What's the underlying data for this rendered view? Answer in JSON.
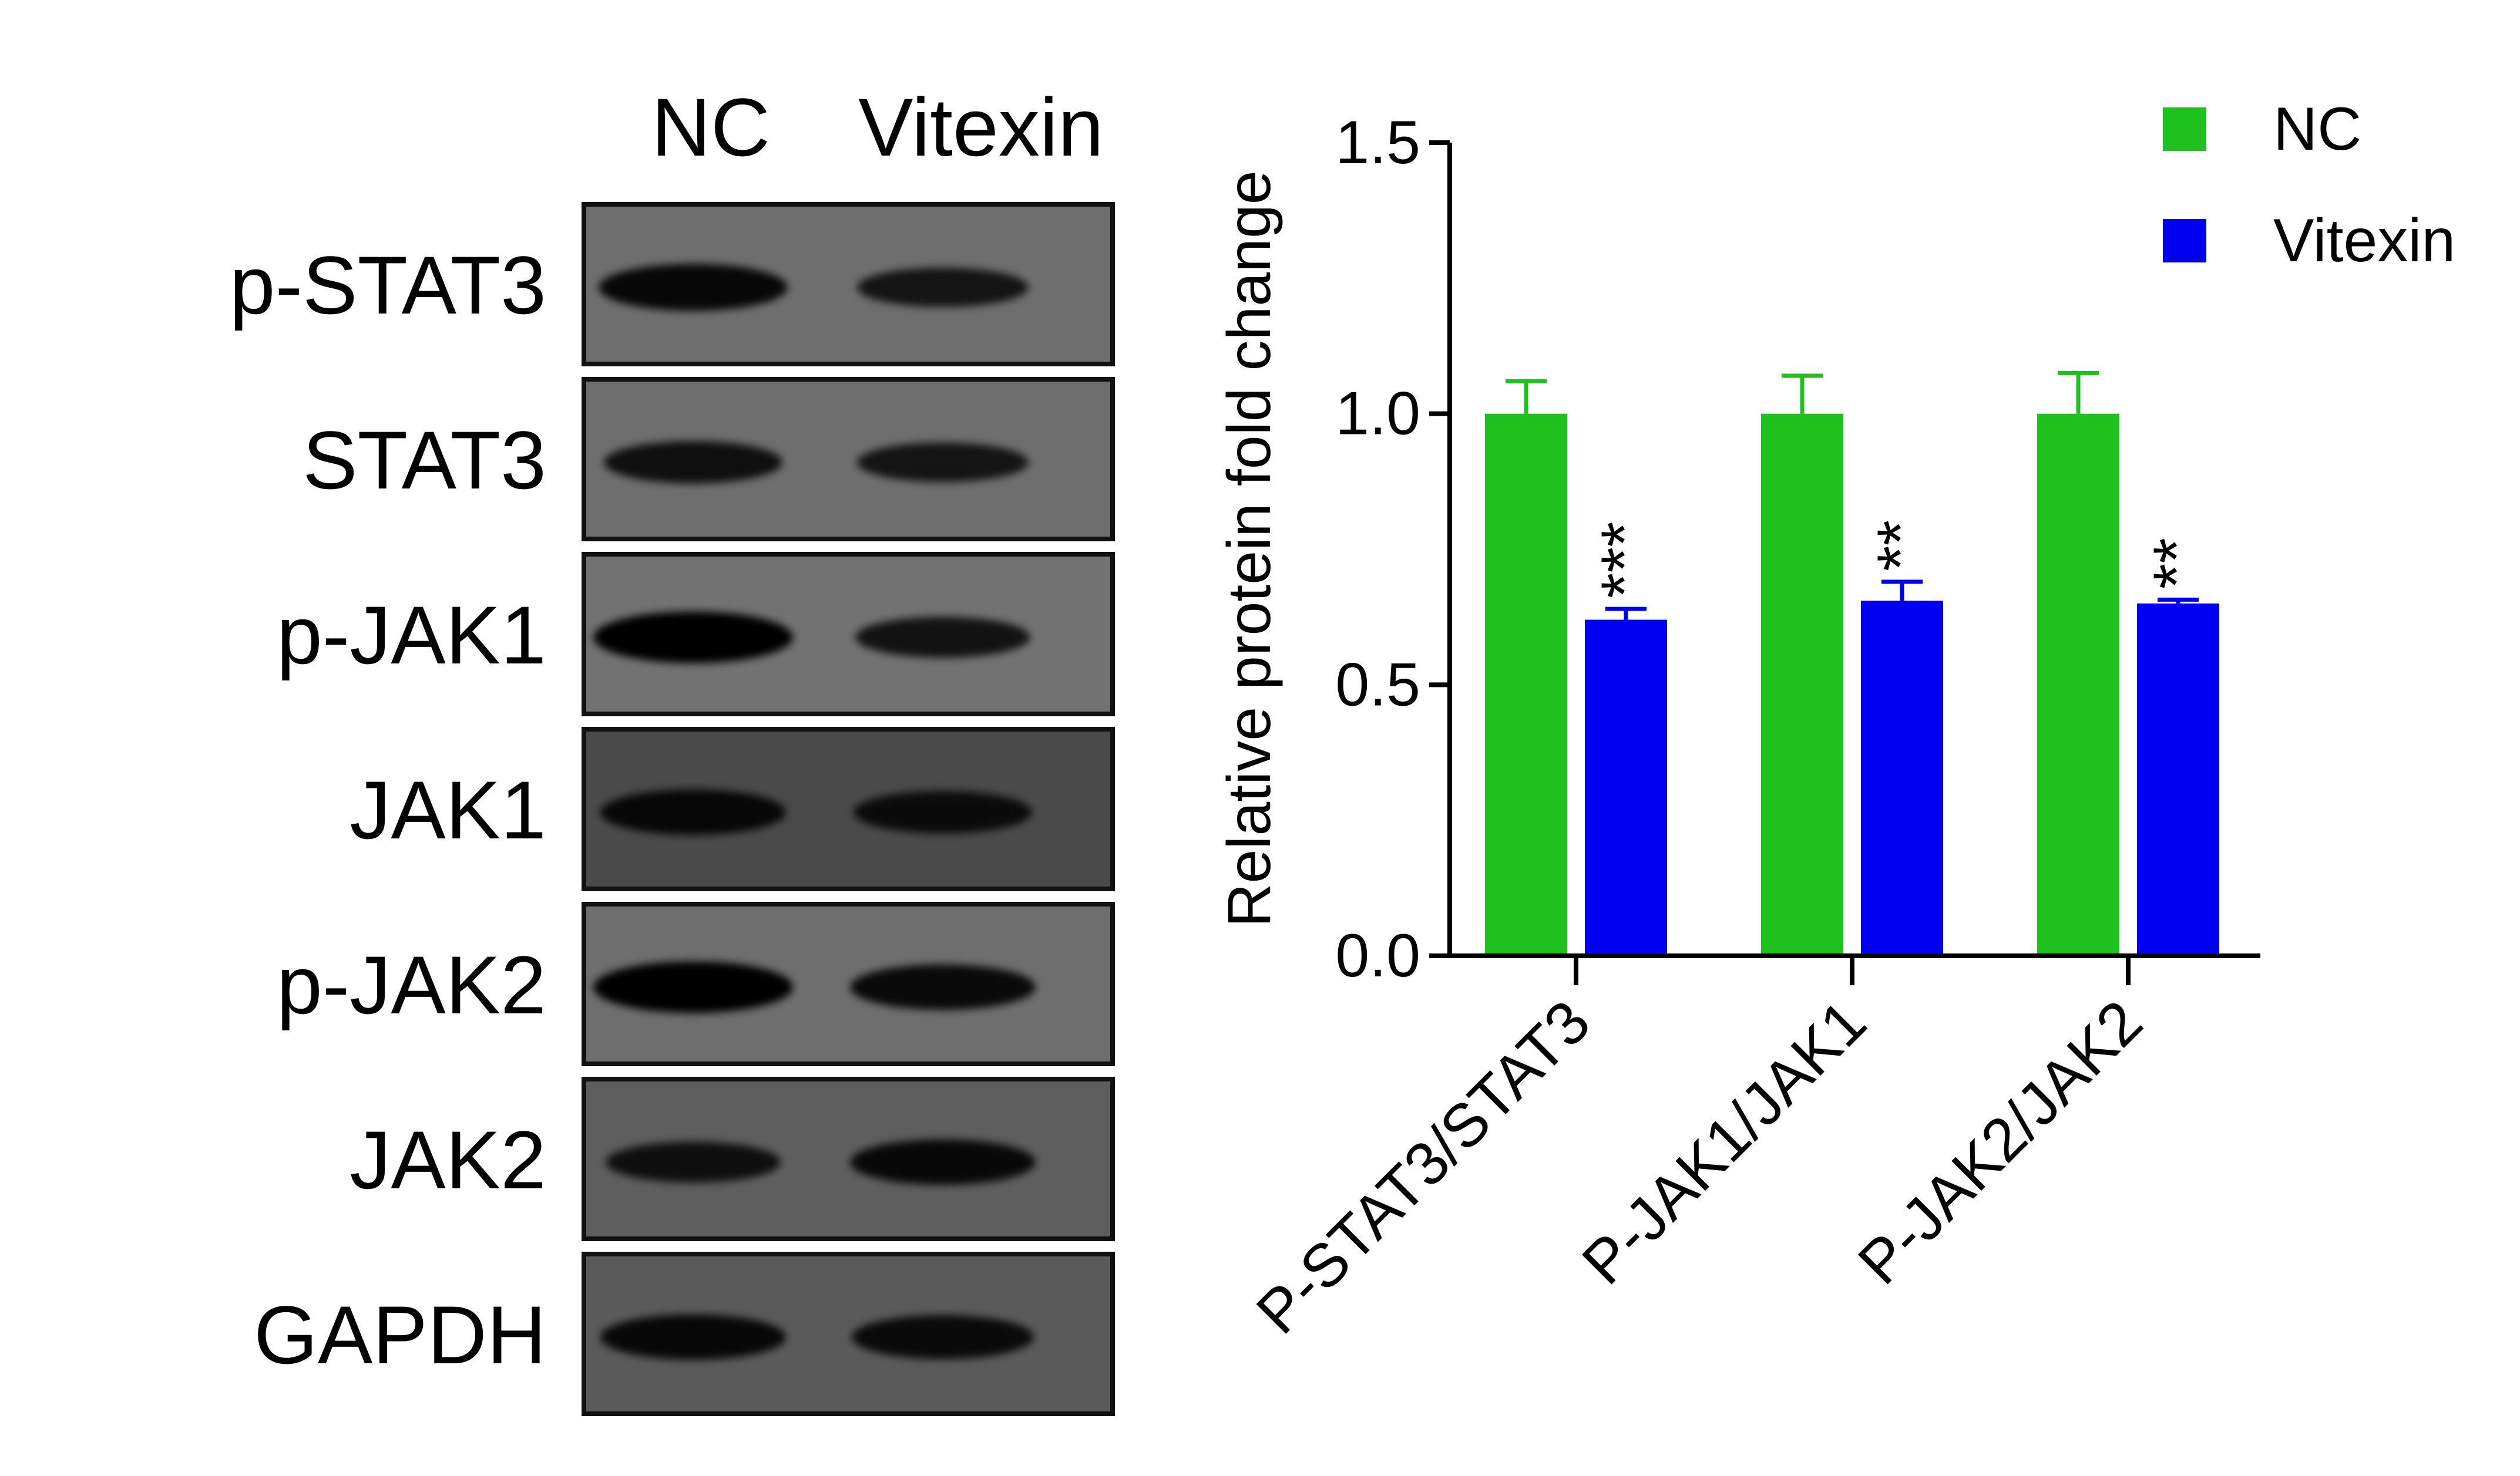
{
  "blot": {
    "lanes": [
      "NC",
      "Vitexin"
    ],
    "rows": [
      {
        "label": "p-STAT3",
        "bands": [
          0.85,
          0.6
        ],
        "bg": "#6e6e6e"
      },
      {
        "label": "STAT3",
        "bands": [
          0.7,
          0.6
        ],
        "bg": "#6e6e6e"
      },
      {
        "label": "p-JAK1",
        "bands": [
          1.0,
          0.65
        ],
        "bg": "#727272"
      },
      {
        "label": "JAK1",
        "bands": [
          0.8,
          0.7
        ],
        "bg": "#4a4a4a"
      },
      {
        "label": "p-JAK2",
        "bands": [
          1.0,
          0.8
        ],
        "bg": "#6e6e6e"
      },
      {
        "label": "JAK2",
        "bands": [
          0.65,
          0.8
        ],
        "bg": "#5e5e5e"
      },
      {
        "label": "GAPDH",
        "bands": [
          0.8,
          0.75
        ],
        "bg": "#5a5a5a"
      }
    ]
  },
  "chart_data": {
    "type": "bar",
    "categories": [
      "P-STAT3/STAT3",
      "P-JAK1/JAK1",
      "P-JAK2/JAK2"
    ],
    "series": [
      {
        "name": "NC",
        "color": "#1fc11f",
        "values": [
          1.0,
          1.0,
          1.0
        ],
        "errors": [
          0.06,
          0.07,
          0.075
        ]
      },
      {
        "name": "Vitexin",
        "color": "#0000f0",
        "values": [
          0.62,
          0.655,
          0.65
        ],
        "errors": [
          0.02,
          0.035,
          0.007
        ]
      }
    ],
    "significance": [
      "***",
      "**",
      "**"
    ],
    "ylabel": "Relative protein fold change",
    "xlabel": "",
    "ylim": [
      0,
      1.5
    ],
    "yticks": [
      "0.0",
      "0.5",
      "1.0",
      "1.5"
    ],
    "legend_position": "top-right",
    "grid": false
  }
}
